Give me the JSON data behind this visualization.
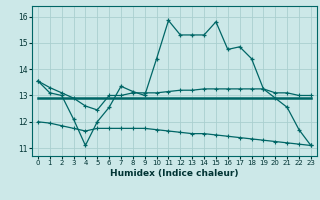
{
  "xlabel": "Humidex (Indice chaleur)",
  "background_color": "#cce8e8",
  "line_color": "#006666",
  "grid_color": "#aacfcf",
  "xlim": [
    -0.5,
    23.5
  ],
  "ylim": [
    10.7,
    16.4
  ],
  "yticks": [
    11,
    12,
    13,
    14,
    15,
    16
  ],
  "xticks": [
    0,
    1,
    2,
    3,
    4,
    5,
    6,
    7,
    8,
    9,
    10,
    11,
    12,
    13,
    14,
    15,
    16,
    17,
    18,
    19,
    20,
    21,
    22,
    23
  ],
  "line1_x": [
    0,
    1,
    2,
    3,
    4,
    5,
    6,
    7,
    8,
    9,
    10,
    11,
    12,
    13,
    14,
    15,
    16,
    17,
    18,
    19,
    20,
    21,
    22,
    23
  ],
  "line1_y": [
    13.55,
    13.1,
    13.0,
    12.1,
    11.1,
    12.0,
    12.55,
    13.35,
    13.15,
    13.0,
    14.4,
    15.85,
    15.3,
    15.3,
    15.3,
    15.8,
    14.75,
    14.85,
    14.4,
    13.25,
    12.9,
    12.55,
    11.7,
    11.1
  ],
  "line2_x": [
    0,
    23
  ],
  "line2_y": [
    12.9,
    12.9
  ],
  "line3_x": [
    0,
    1,
    2,
    3,
    4,
    5,
    6,
    7,
    8,
    9,
    10,
    11,
    12,
    13,
    14,
    15,
    16,
    17,
    18,
    19,
    20,
    21,
    22,
    23
  ],
  "line3_y": [
    13.55,
    13.3,
    13.1,
    12.9,
    12.6,
    12.45,
    13.0,
    13.0,
    13.1,
    13.1,
    13.1,
    13.15,
    13.2,
    13.2,
    13.25,
    13.25,
    13.25,
    13.25,
    13.25,
    13.25,
    13.1,
    13.1,
    13.0,
    13.0
  ],
  "line4_x": [
    0,
    1,
    2,
    3,
    4,
    5,
    6,
    7,
    8,
    9,
    10,
    11,
    12,
    13,
    14,
    15,
    16,
    17,
    18,
    19,
    20,
    21,
    22,
    23
  ],
  "line4_y": [
    12.0,
    11.95,
    11.85,
    11.75,
    11.65,
    11.75,
    11.75,
    11.75,
    11.75,
    11.75,
    11.7,
    11.65,
    11.6,
    11.55,
    11.55,
    11.5,
    11.45,
    11.4,
    11.35,
    11.3,
    11.25,
    11.2,
    11.15,
    11.1
  ]
}
